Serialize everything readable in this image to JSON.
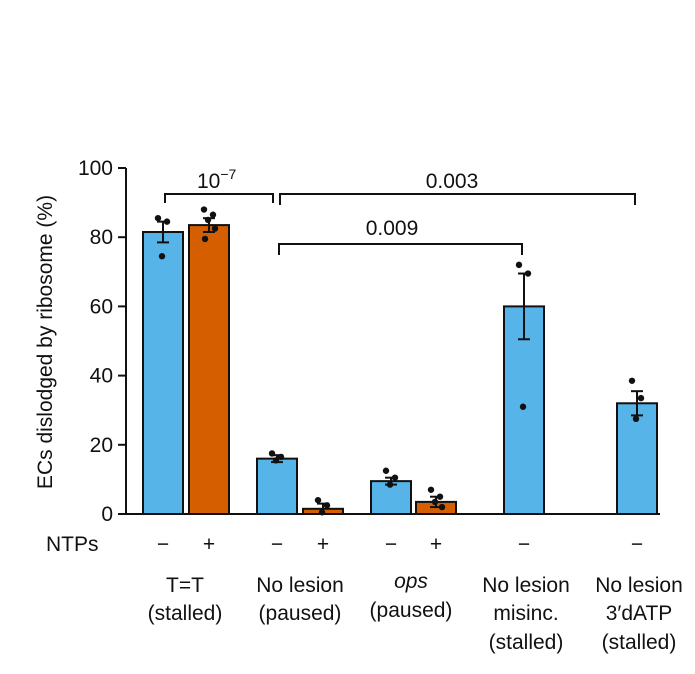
{
  "chart_data": {
    "type": "bar",
    "ylabel": "ECs dislodged by ribosome (%)",
    "ylim": [
      0,
      100
    ],
    "yticks": [
      0,
      20,
      40,
      60,
      80,
      100
    ],
    "ntp_row_label": "NTPs",
    "colors": {
      "no_ntp": "#56b4e9",
      "ntp": "#d55e00"
    },
    "groups": [
      {
        "name": "T=T",
        "status": "(stalled)",
        "italic": false,
        "bars": [
          {
            "ntps": "−",
            "value": 81.5,
            "err": 3,
            "points": [
              85.5,
              84.5,
              74.5
            ]
          },
          {
            "ntps": "+",
            "value": 83.5,
            "err": 2,
            "points": [
              88,
              86.5,
              85,
              82.5,
              79.5
            ]
          }
        ]
      },
      {
        "name": "No lesion",
        "status": "(paused)",
        "italic": false,
        "bars": [
          {
            "ntps": "−",
            "value": 16,
            "err": 1,
            "points": [
              17.5,
              16.5,
              15.5
            ]
          },
          {
            "ntps": "+",
            "value": 1.5,
            "err": 1.5,
            "points": [
              4,
              2.5,
              0.5
            ]
          }
        ]
      },
      {
        "name": "ops",
        "status": "(paused)",
        "italic": true,
        "bars": [
          {
            "ntps": "−",
            "value": 9.5,
            "err": 1,
            "points": [
              12.5,
              10.5,
              8.5
            ]
          },
          {
            "ntps": "+",
            "value": 3.5,
            "err": 1.5,
            "points": [
              7,
              5,
              3.5,
              2
            ]
          }
        ]
      },
      {
        "name": "No lesion",
        "status": "(stalled)",
        "line2": "misinc.",
        "italic": false,
        "bars": [
          {
            "ntps": "−",
            "value": 60,
            "err": 9.5,
            "points": [
              72,
              69.5,
              31
            ]
          }
        ]
      },
      {
        "name": "No lesion",
        "status": "(stalled)",
        "line2": "3′dATP",
        "italic": false,
        "bars": [
          {
            "ntps": "−",
            "value": 32,
            "err": 3.5,
            "points": [
              38.5,
              33.5,
              27.5
            ]
          }
        ]
      }
    ],
    "comparisons": [
      {
        "label_base": "10",
        "label_exp": "−7",
        "from": "T=T",
        "to": "No lesion (paused)"
      },
      {
        "label": "0.003",
        "from": "No lesion (paused)",
        "to": "No lesion 3′dATP (stalled)"
      },
      {
        "label": "0.009",
        "from": "No lesion (paused)",
        "to": "No lesion misinc. (stalled)"
      }
    ]
  }
}
